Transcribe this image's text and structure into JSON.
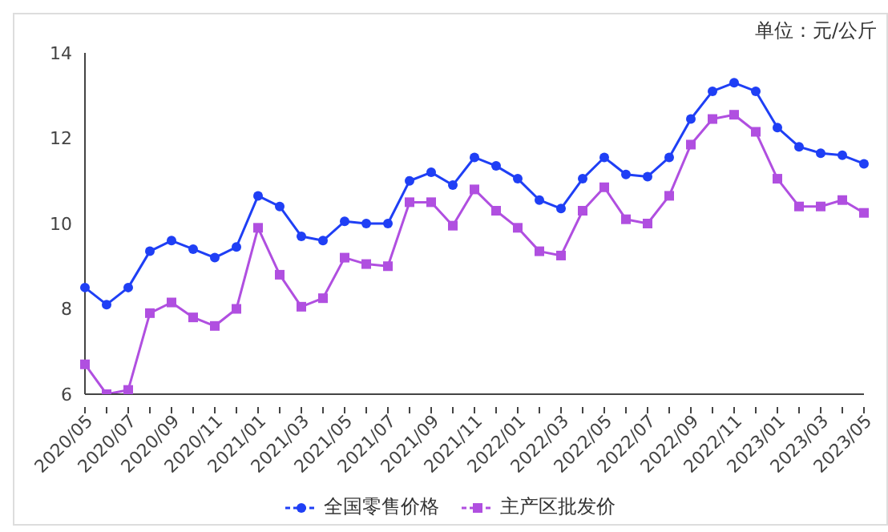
{
  "chart_data": {
    "type": "line",
    "annotations": [
      "单位：元/公斤"
    ],
    "categories": [
      "2020/05",
      null,
      "2020/07",
      null,
      "2020/09",
      null,
      "2020/11",
      null,
      "2021/01",
      null,
      "2021/03",
      null,
      "2021/05",
      null,
      "2021/07",
      null,
      "2021/09",
      null,
      "2021/11",
      null,
      "2022/01",
      null,
      "2022/03",
      null,
      "2022/05",
      null,
      "2022/07",
      null,
      "2022/09",
      null,
      "2022/11",
      null,
      "2023/01",
      null,
      "2023/03",
      null,
      "2023/05"
    ],
    "series": [
      {
        "name": "全国零售价格",
        "color": "#1f3ff5",
        "marker": "circle",
        "values": [
          8.5,
          8.1,
          8.5,
          9.35,
          9.6,
          9.4,
          9.2,
          9.45,
          10.65,
          10.4,
          9.7,
          9.6,
          10.05,
          10.0,
          10.0,
          11.0,
          11.2,
          10.9,
          11.55,
          11.35,
          11.05,
          10.55,
          10.35,
          11.05,
          11.55,
          11.15,
          11.1,
          11.55,
          12.45,
          13.1,
          13.3,
          13.1,
          12.25,
          11.8,
          11.65,
          11.6,
          11.4
        ]
      },
      {
        "name": "主产区批发价",
        "color": "#b04fe0",
        "marker": "square",
        "values": [
          6.7,
          6.0,
          6.1,
          7.9,
          8.15,
          7.8,
          7.6,
          8.0,
          9.9,
          8.8,
          8.05,
          8.25,
          9.2,
          9.05,
          9.0,
          10.5,
          10.5,
          9.95,
          10.8,
          10.3,
          9.9,
          9.35,
          9.25,
          10.3,
          10.85,
          10.1,
          10.0,
          10.65,
          11.85,
          12.45,
          12.55,
          12.15,
          11.05,
          10.4,
          10.4,
          10.55,
          10.25
        ]
      }
    ],
    "ylim": [
      6,
      14
    ],
    "yticks": [
      6,
      8,
      10,
      12,
      14
    ],
    "grid": false,
    "legend": "bottom"
  }
}
